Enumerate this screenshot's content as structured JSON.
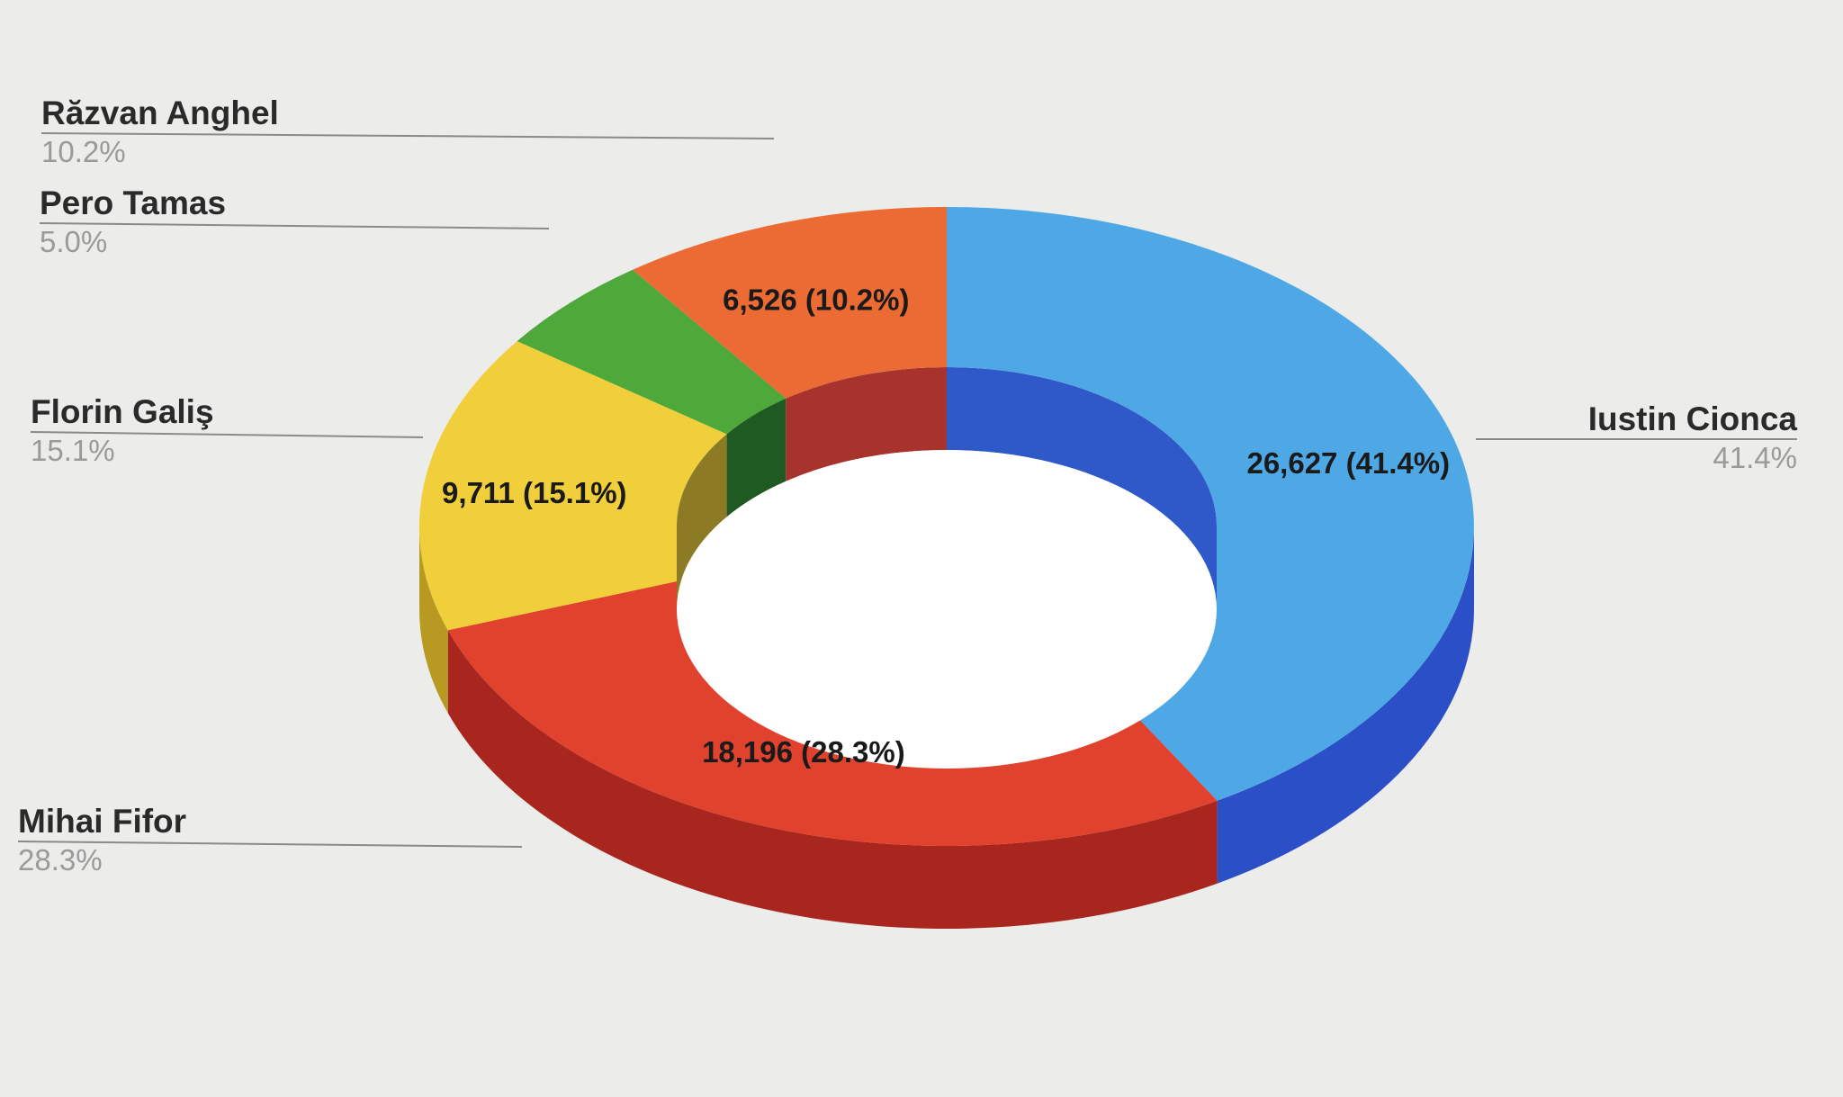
{
  "chart_data": {
    "type": "pie",
    "style": "3d-donut",
    "title": "",
    "value_unit": "",
    "slices": [
      {
        "name": "Iustin Cionca",
        "value": 26627,
        "percent": "41.4%",
        "data_label": "26,627 (41.4%)",
        "color": "#4fa8e6",
        "side_color": "#2b4fc7",
        "inner_color": "#2f58c9"
      },
      {
        "name": "Mihai Fifor",
        "value": 18196,
        "percent": "28.3%",
        "data_label": "18,196 (28.3%)",
        "color": "#e0422e",
        "side_color": "#a8261d",
        "inner_color": "#8f2a22"
      },
      {
        "name": "Florin Galiş",
        "value": 9711,
        "percent": "15.1%",
        "data_label": "9,711 (15.1%)",
        "color": "#f0cf3a",
        "side_color": "#b89a22",
        "inner_color": "#8c7a25"
      },
      {
        "name": "Pero Tamas",
        "value": 3214,
        "percent": "5.0%",
        "data_label": "",
        "color": "#4fa83a",
        "side_color": "#2e7a28",
        "inner_color": "#1f5a22"
      },
      {
        "name": "Răzvan Anghel",
        "value": 6526,
        "percent": "10.2%",
        "data_label": "6,526 (10.2%)",
        "color": "#ec6a33",
        "side_color": "#b84b25",
        "inner_color": "#a8332c"
      }
    ],
    "legend": "outside-labels"
  }
}
